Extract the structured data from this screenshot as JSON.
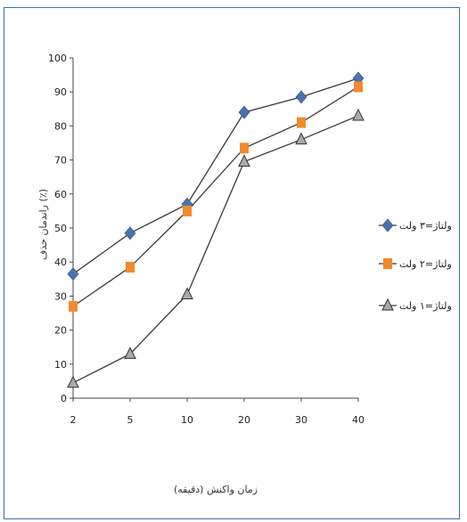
{
  "chart_data": {
    "type": "line",
    "title": "",
    "xlabel": "زمان واکنش (دقیقه)",
    "ylabel": "راندمان حذف (٪)",
    "categories": [
      "2",
      "5",
      "10",
      "20",
      "30",
      "40"
    ],
    "ylim": [
      0,
      100
    ],
    "yticks": [
      "0",
      "10",
      "20",
      "30",
      "40",
      "50",
      "60",
      "70",
      "80",
      "90",
      "100"
    ],
    "grid": false,
    "legend_position": "right",
    "series": [
      {
        "name": "ولتاژ=۳ ولت",
        "values": [
          36.5,
          48.5,
          57,
          84,
          88.5,
          94
        ],
        "color": "#4a72b0",
        "marker": "diamond"
      },
      {
        "name": "ولتاژ=۲ ولت",
        "values": [
          27,
          38.5,
          55,
          73.5,
          81,
          91.5
        ],
        "color": "#f08a2c",
        "marker": "square"
      },
      {
        "name": "ولتاژ=۱ ولت",
        "values": [
          4.5,
          13,
          30.5,
          69.5,
          76,
          83
        ],
        "color": "#888888",
        "marker": "triangle"
      }
    ]
  }
}
